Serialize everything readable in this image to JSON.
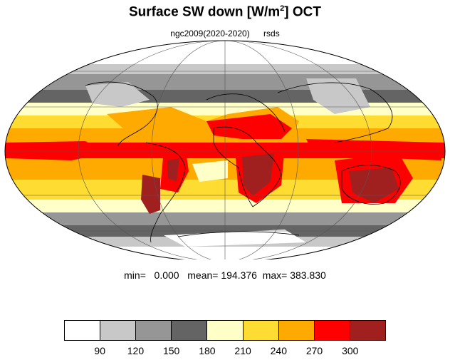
{
  "title": {
    "main": "Surface SW down [W/m",
    "sup": "2",
    "end": "]  OCT"
  },
  "subtitle": {
    "model": "ngc2009(2020-2020)",
    "variable": "rsds"
  },
  "stats": {
    "text": "min=   0.000   mean= 194.376  max= 383.830"
  },
  "colorbar": {
    "colors": [
      "#ffffff",
      "#c8c8c8",
      "#969696",
      "#646464",
      "#ffffc8",
      "#ffdc32",
      "#ffaa00",
      "#ff0000",
      "#a02020"
    ],
    "labels": [
      "90",
      "120",
      "150",
      "180",
      "210",
      "240",
      "270",
      "300"
    ]
  },
  "map": {
    "projection": "Mollweide",
    "field": "rsds",
    "month": "OCT"
  }
}
